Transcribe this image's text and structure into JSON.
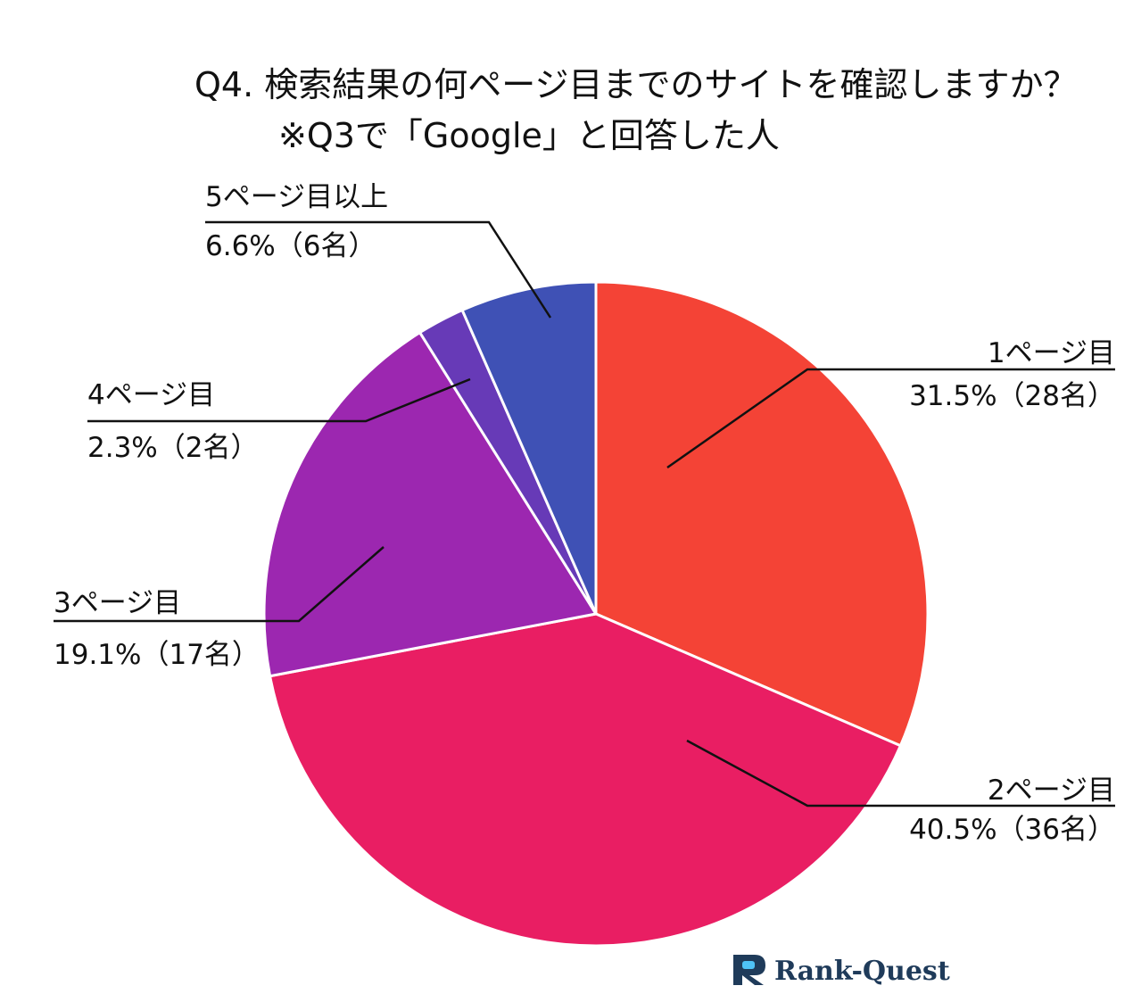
{
  "chart_data": {
    "type": "pie",
    "title": "Q4. 検索結果の何ページ目までのサイトを確認しますか？",
    "subtitle": "※Q3で「Google」と回答した人",
    "start": "12 o'clock",
    "direction": "clockwise",
    "slices": [
      {
        "name": "1ページ目",
        "value": 31.5,
        "value_label": "31.5%（28名）",
        "count": 28,
        "color": "#f44336"
      },
      {
        "name": "2ページ目",
        "value": 40.5,
        "value_label": "40.5%（36名）",
        "count": 36,
        "color": "#e91e63"
      },
      {
        "name": "3ページ目",
        "value": 19.1,
        "value_label": "19.1%（17名）",
        "count": 17,
        "color": "#9c27b0"
      },
      {
        "name": "4ページ目",
        "value": 2.3,
        "value_label": "2.3%（2名）",
        "count": 2,
        "color": "#673ab7"
      },
      {
        "name": "5ページ目以上",
        "value": 6.6,
        "value_label": "6.6%（6名）",
        "count": 6,
        "color": "#3f51b5"
      }
    ],
    "slice_border_color": "#ffffff"
  },
  "brand": {
    "name": "Rank-Quest",
    "logo_icon": "rank-quest-logo-icon",
    "logo_color": "#1f3b5a",
    "logo_accent": "#4fc3f7"
  }
}
